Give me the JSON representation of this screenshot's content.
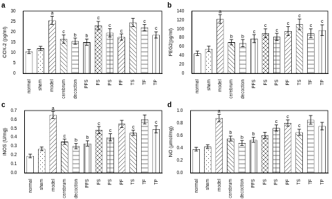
{
  "chart_data": [
    {
      "type": "bar",
      "title": "a",
      "y_label": "COX-2 (pg/ml)",
      "categories": [
        "normal",
        "sham",
        "model",
        "cerebrum",
        "decoction",
        "PFS",
        "FS",
        "PS",
        "PF",
        "TS",
        "TF",
        "TP"
      ],
      "series": [
        {
          "name": "COX-2",
          "color": "#000000",
          "values": [
            10.5,
            12,
            25.5,
            16.5,
            15.5,
            15,
            23,
            19.5,
            17.5,
            24.5,
            22,
            18.5
          ],
          "errors": [
            1,
            1,
            2,
            2,
            1.5,
            1.5,
            2,
            2,
            1.5,
            2,
            1.5,
            1.5
          ],
          "letters": [
            null,
            null,
            "a",
            "c",
            "b",
            "b",
            "c",
            "c",
            "c",
            null,
            "c",
            "c"
          ]
        }
      ],
      "ylim": [
        0,
        30
      ],
      "yticks": [
        0,
        5,
        10,
        15,
        20,
        25,
        30
      ],
      "grid": false
    },
    {
      "type": "bar",
      "title": "b",
      "y_label": "PEG2(pg/ml)",
      "categories": [
        "normal",
        "sham",
        "model",
        "cerebrum",
        "decoction",
        "PFS",
        "FS",
        "PS",
        "PF",
        "TS",
        "TF",
        "TP"
      ],
      "series": [
        {
          "name": "PEG2",
          "color": "#000000",
          "values": [
            45,
            55,
            122,
            70,
            68,
            78,
            90,
            82,
            95,
            110,
            90,
            97
          ],
          "errors": [
            5,
            6,
            10,
            6,
            8,
            9,
            10,
            8,
            10,
            12,
            10,
            12
          ],
          "letters": [
            null,
            null,
            "a",
            "b",
            "b",
            "c",
            "c",
            "c",
            "c",
            "c",
            "c",
            "c"
          ]
        }
      ],
      "ylim": [
        0,
        140
      ],
      "yticks": [
        0,
        20,
        40,
        60,
        80,
        100,
        120,
        140
      ],
      "grid": false
    },
    {
      "type": "bar",
      "title": "c",
      "y_label": "iNOS (U/mg)",
      "categories": [
        "normal",
        "sham",
        "model",
        "cerebrum",
        "decoction",
        "PFS",
        "FS",
        "PS",
        "PF",
        "TS",
        "TF",
        "TP"
      ],
      "series": [
        {
          "name": "iNOS",
          "color": "#000000",
          "values": [
            0.19,
            0.27,
            0.65,
            0.35,
            0.3,
            0.33,
            0.48,
            0.4,
            0.55,
            0.45,
            0.6,
            0.49
          ],
          "errors": [
            0.02,
            0.02,
            0.04,
            0.03,
            0.03,
            0.03,
            0.04,
            0.04,
            0.04,
            0.03,
            0.05,
            0.04
          ],
          "letters": [
            null,
            null,
            "a",
            "c",
            "b",
            "b",
            "c",
            "c",
            null,
            "c",
            null,
            "c"
          ]
        }
      ],
      "ylim": [
        0,
        0.7
      ],
      "yticks": [
        {
          "value": 0,
          "label": "0.0"
        },
        0.1,
        0.2,
        0.3,
        0.4,
        0.5,
        0.6,
        0.7
      ],
      "grid": false
    },
    {
      "type": "bar",
      "title": "d",
      "y_label": "NO (μmol/mg)",
      "categories": [
        "normal",
        "sham",
        "model",
        "cerebrum",
        "decoction",
        "PFS",
        "FS",
        "PS",
        "PF",
        "TS",
        "TF",
        "TP"
      ],
      "series": [
        {
          "name": "NO",
          "color": "#000000",
          "values": [
            0.38,
            0.42,
            0.88,
            0.55,
            0.48,
            0.53,
            0.6,
            0.72,
            0.8,
            0.65,
            0.85,
            0.75
          ],
          "errors": [
            0.03,
            0.03,
            0.06,
            0.04,
            0.04,
            0.04,
            0.05,
            0.05,
            0.05,
            0.05,
            0.07,
            0.06
          ],
          "letters": [
            null,
            null,
            "a",
            "b",
            "b",
            "b",
            null,
            "c",
            "c",
            "c",
            null,
            null
          ]
        }
      ],
      "ylim": [
        0,
        1
      ],
      "yticks": [
        {
          "value": 0,
          "label": "0.0"
        },
        0.2,
        0.4,
        0.6,
        0.8,
        {
          "value": 1,
          "label": "1.0"
        }
      ],
      "grid": false
    }
  ]
}
